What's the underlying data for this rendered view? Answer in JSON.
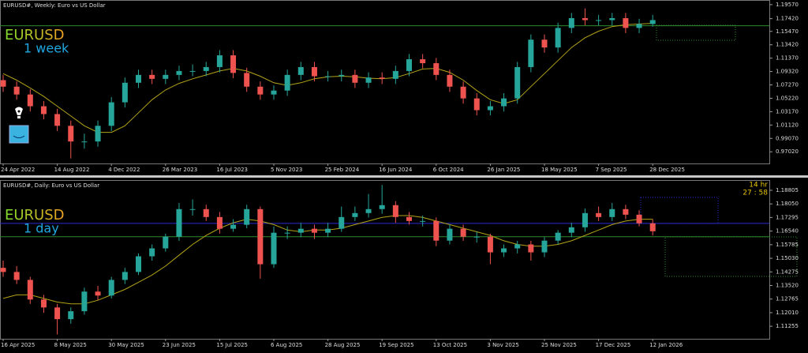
{
  "chart_data": [
    {
      "type": "candlestick",
      "title": "EURUSD#, Weekly:  Euro vs US Dollar",
      "symbol": "EURUSD",
      "period": "1 week",
      "categories": [
        "24 Apr 2022",
        null,
        null,
        null,
        "14 Aug 2022",
        null,
        null,
        null,
        "4 Dec 2022",
        null,
        null,
        null,
        "26 Mar 2023",
        null,
        null,
        null,
        "16 Jul 2023",
        null,
        null,
        null,
        "5 Nov 2023",
        null,
        null,
        null,
        "25 Feb 2024",
        null,
        null,
        null,
        "16 Jun 2024",
        null,
        null,
        null,
        "6 Oct 2024",
        null,
        null,
        null,
        "26 Jan 2025",
        null,
        null,
        null,
        "18 May 2025",
        null,
        null,
        null,
        "7 Sep 2025",
        null,
        null,
        null,
        "28 Dec 2025"
      ],
      "open": [
        1.08,
        1.07,
        1.058,
        1.04,
        1.028,
        1.01,
        0.986,
        0.986,
        1.01,
        1.046,
        1.076,
        1.088,
        1.082,
        1.088,
        1.094,
        1.094,
        1.1,
        1.118,
        1.091,
        1.07,
        1.058,
        1.064,
        1.088,
        1.1,
        1.086,
        1.086,
        1.088,
        1.076,
        1.084,
        1.082,
        1.094,
        1.112,
        1.106,
        1.088,
        1.07,
        1.052,
        1.034,
        1.04,
        1.052,
        1.1,
        1.142,
        1.13,
        1.16,
        1.175,
        1.172,
        1.172,
        1.175,
        1.16,
        1.166
      ],
      "high": [
        1.088,
        1.078,
        1.066,
        1.048,
        1.036,
        1.018,
        0.998,
        1.018,
        1.054,
        1.084,
        1.096,
        1.096,
        1.096,
        1.102,
        1.104,
        1.108,
        1.126,
        1.126,
        1.099,
        1.078,
        1.072,
        1.096,
        1.108,
        1.108,
        1.094,
        1.096,
        1.096,
        1.092,
        1.092,
        1.102,
        1.12,
        1.12,
        1.114,
        1.096,
        1.078,
        1.06,
        1.048,
        1.06,
        1.108,
        1.15,
        1.15,
        1.168,
        1.183,
        1.19,
        1.18,
        1.183,
        1.183,
        1.174,
        1.18
      ],
      "low": [
        1.062,
        1.05,
        1.032,
        1.02,
        1.002,
        0.96,
        0.975,
        0.978,
        1.002,
        1.038,
        1.068,
        1.074,
        1.074,
        1.08,
        1.086,
        1.086,
        1.092,
        1.083,
        1.062,
        1.05,
        1.05,
        1.056,
        1.08,
        1.078,
        1.078,
        1.078,
        1.068,
        1.068,
        1.074,
        1.074,
        1.086,
        1.098,
        1.08,
        1.062,
        1.044,
        1.026,
        1.026,
        1.032,
        1.044,
        1.092,
        1.122,
        1.122,
        1.152,
        1.164,
        1.164,
        1.164,
        1.152,
        1.152,
        1.162
      ],
      "close": [
        1.07,
        1.058,
        1.04,
        1.028,
        1.01,
        0.986,
        0.986,
        1.01,
        1.046,
        1.076,
        1.088,
        1.082,
        1.088,
        1.094,
        1.094,
        1.1,
        1.118,
        1.091,
        1.07,
        1.058,
        1.064,
        1.088,
        1.1,
        1.086,
        1.086,
        1.088,
        1.076,
        1.084,
        1.082,
        1.094,
        1.112,
        1.106,
        1.088,
        1.07,
        1.052,
        1.034,
        1.04,
        1.052,
        1.1,
        1.142,
        1.13,
        1.16,
        1.175,
        1.172,
        1.172,
        1.175,
        1.16,
        1.166,
        1.172
      ],
      "up_color": "#26a69a",
      "down_color": "#ef5350",
      "ma": {
        "color": "#b3a318",
        "values": [
          1.09,
          1.08,
          1.068,
          1.055,
          1.04,
          1.025,
          1.01,
          1.0,
          1.0,
          1.01,
          1.03,
          1.05,
          1.065,
          1.075,
          1.082,
          1.088,
          1.094,
          1.098,
          1.094,
          1.086,
          1.076,
          1.072,
          1.076,
          1.082,
          1.085,
          1.086,
          1.085,
          1.083,
          1.082,
          1.084,
          1.09,
          1.097,
          1.098,
          1.092,
          1.08,
          1.064,
          1.05,
          1.044,
          1.05,
          1.07,
          1.09,
          1.11,
          1.13,
          1.145,
          1.155,
          1.162,
          1.165,
          1.166,
          1.167
        ]
      },
      "hlines": [
        {
          "value": 1.1633,
          "color": "#2e8b2e"
        }
      ],
      "ylim": [
        0.9523,
        1.2016
      ],
      "yticks": [
        {
          "value": 1.1957,
          "label": "1.19570"
        },
        {
          "value": 1.1742,
          "label": "1.17420"
        },
        {
          "value": 1.1547,
          "label": "1.15470"
        },
        {
          "value": 1.1342,
          "label": "1.13420"
        },
        {
          "value": 1.1137,
          "label": "1.11370"
        },
        {
          "value": 1.0932,
          "label": "1.09320"
        },
        {
          "value": 1.0727,
          "label": "1.07270"
        },
        {
          "value": 1.0522,
          "label": "1.05220"
        },
        {
          "value": 1.0317,
          "label": "1.03170"
        },
        {
          "value": 1.0112,
          "label": "1.01120"
        },
        {
          "value": 0.9907,
          "label": "0.99070"
        },
        {
          "value": 0.9702,
          "label": "0.97020"
        }
      ]
    },
    {
      "type": "candlestick",
      "title": "EURUSD#, Daily:  Euro vs US Dollar",
      "symbol": "EURUSD",
      "period": "1 day",
      "countdown": [
        "14 hr",
        "27 : 58"
      ],
      "categories": [
        "16 Apr 2025",
        null,
        null,
        null,
        "8 May 2025",
        null,
        null,
        null,
        "30 May 2025",
        null,
        null,
        null,
        "23 Jun 2025",
        null,
        null,
        null,
        "15 Jul 2025",
        null,
        null,
        null,
        "6 Aug 2025",
        null,
        null,
        null,
        "28 Aug 2025",
        null,
        null,
        null,
        "19 Sep 2025",
        null,
        null,
        null,
        "13 Oct 2025",
        null,
        null,
        null,
        "3 Nov 2025",
        null,
        null,
        null,
        "25 Nov 2025",
        null,
        null,
        null,
        "17 Dec 2025",
        null,
        null,
        null,
        "12 Jan 2026"
      ],
      "open": [
        1.145,
        1.1427,
        1.1383,
        1.1274,
        1.123,
        1.1165,
        1.1209,
        1.1318,
        1.1296,
        1.1383,
        1.1427,
        1.1514,
        1.1558,
        1.1623,
        1.1776,
        1.1776,
        1.1732,
        1.1667,
        1.1689,
        1.1776,
        1.147,
        1.1645,
        1.1645,
        1.1667,
        1.1645,
        1.1667,
        1.1732,
        1.1754,
        1.1776,
        1.1798,
        1.1732,
        1.171,
        1.171,
        1.1601,
        1.1667,
        1.1623,
        1.1623,
        1.1536,
        1.1558,
        1.158,
        1.1536,
        1.1601,
        1.1645,
        1.1675,
        1.1754,
        1.1732,
        1.1776,
        1.1745,
        1.1697
      ],
      "high": [
        1.149,
        1.146,
        1.14,
        1.13,
        1.125,
        1.123,
        1.134,
        1.135,
        1.14,
        1.145,
        1.153,
        1.158,
        1.164,
        1.181,
        1.183,
        1.18,
        1.176,
        1.172,
        1.18,
        1.179,
        1.168,
        1.168,
        1.17,
        1.169,
        1.17,
        1.179,
        1.179,
        1.186,
        1.191,
        1.182,
        1.176,
        1.174,
        1.173,
        1.169,
        1.169,
        1.165,
        1.164,
        1.158,
        1.16,
        1.16,
        1.162,
        1.166,
        1.17,
        1.178,
        1.179,
        1.181,
        1.18,
        1.177,
        1.172
      ],
      "low": [
        1.14,
        1.136,
        1.125,
        1.12,
        1.108,
        1.114,
        1.119,
        1.127,
        1.128,
        1.136,
        1.141,
        1.149,
        1.154,
        1.16,
        1.174,
        1.171,
        1.164,
        1.165,
        1.167,
        1.139,
        1.145,
        1.161,
        1.162,
        1.161,
        1.162,
        1.165,
        1.171,
        1.173,
        1.175,
        1.17,
        1.169,
        1.168,
        1.157,
        1.158,
        1.16,
        1.159,
        1.147,
        1.151,
        1.153,
        1.149,
        1.151,
        1.158,
        1.162,
        1.165,
        1.171,
        1.171,
        1.172,
        1.168,
        1.163
      ],
      "close": [
        1.1427,
        1.1383,
        1.1274,
        1.123,
        1.1165,
        1.1209,
        1.1318,
        1.1296,
        1.1383,
        1.1427,
        1.1514,
        1.1558,
        1.1623,
        1.1776,
        1.1776,
        1.1732,
        1.1667,
        1.1689,
        1.1776,
        1.147,
        1.1645,
        1.1645,
        1.1667,
        1.1645,
        1.1667,
        1.1732,
        1.1754,
        1.1776,
        1.1798,
        1.1732,
        1.171,
        1.171,
        1.1601,
        1.1667,
        1.1623,
        1.1623,
        1.1536,
        1.1558,
        1.158,
        1.1536,
        1.1601,
        1.1645,
        1.1675,
        1.1754,
        1.1732,
        1.1776,
        1.1745,
        1.1697,
        1.1653
      ],
      "up_color": "#26a69a",
      "down_color": "#ef5350",
      "ma": {
        "color": "#b3a318",
        "values": [
          1.128,
          1.13,
          1.13,
          1.128,
          1.126,
          1.125,
          1.125,
          1.127,
          1.13,
          1.133,
          1.137,
          1.141,
          1.146,
          1.152,
          1.158,
          1.163,
          1.167,
          1.17,
          1.172,
          1.171,
          1.169,
          1.166,
          1.165,
          1.166,
          1.166,
          1.167,
          1.169,
          1.171,
          1.173,
          1.174,
          1.174,
          1.173,
          1.171,
          1.169,
          1.167,
          1.165,
          1.163,
          1.16,
          1.158,
          1.157,
          1.157,
          1.158,
          1.16,
          1.163,
          1.166,
          1.169,
          1.171,
          1.172,
          1.172
        ]
      },
      "hlines": [
        {
          "value": 1.1697,
          "color": "#2a2ad0"
        },
        {
          "value": 1.1623,
          "color": "#2e8b2e"
        }
      ],
      "ylim": [
        1.1056,
        1.1933
      ],
      "yticks": [
        1.18805,
        {
          "value": 1.1805,
          "label": "1.18050"
        },
        1.17295,
        {
          "value": 1.1654,
          "label": "1.16540"
        },
        1.15785,
        {
          "value": 1.1503,
          "label": "1.15030"
        },
        1.14275,
        {
          "value": 1.1352,
          "label": "1.13520"
        },
        1.12765,
        {
          "value": 1.1201,
          "label": "1.12010"
        },
        1.11255
      ]
    }
  ]
}
